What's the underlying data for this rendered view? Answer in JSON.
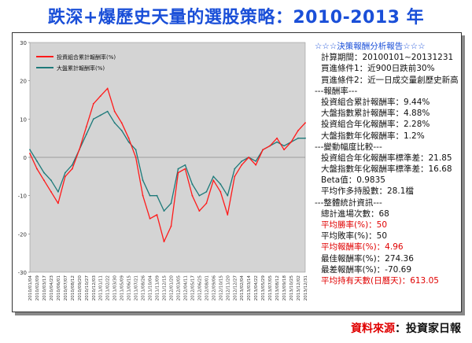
{
  "title": "跌深+爆歷史天量的選股策略：2010-2013 年",
  "source": {
    "label": "資料來源",
    "value": "：投資家日報"
  },
  "report": [
    {
      "text": "☆☆☆決策報酬分析報告☆☆☆",
      "style": "head",
      "indent": 1
    },
    {
      "text": "計算期間：20100101~20131231",
      "style": "",
      "indent": 2
    },
    {
      "text": "買進條件1：近900日跌前30%",
      "style": "",
      "indent": 2
    },
    {
      "text": "買進條件2：近一日成交量創歷史新高",
      "style": "",
      "indent": 2
    },
    {
      "text": "---報酬率---",
      "style": "",
      "indent": 1
    },
    {
      "text": "投資組合累計報酬率：9.44%",
      "style": "",
      "indent": 2
    },
    {
      "text": "大盤指數累計報酬率：4.88%",
      "style": "",
      "indent": 2
    },
    {
      "text": "投資組合年化報酬率：2.28%",
      "style": "",
      "indent": 2
    },
    {
      "text": "大盤指數年化報酬率：1.2%",
      "style": "",
      "indent": 2
    },
    {
      "text": "---變動幅度比較---",
      "style": "",
      "indent": 1
    },
    {
      "text": "投資組合年化報酬率標準差：21.85",
      "style": "",
      "indent": 2
    },
    {
      "text": "大盤指數年化報酬率標準差：16.68",
      "style": "",
      "indent": 2
    },
    {
      "text": "Beta值：0.9835",
      "style": "",
      "indent": 2
    },
    {
      "text": "平均作多持股數：28.1檔",
      "style": "",
      "indent": 2
    },
    {
      "text": "---整體統計資訊---",
      "style": "",
      "indent": 1
    },
    {
      "text": "總計進場次數：68",
      "style": "",
      "indent": 2
    },
    {
      "text": "平均勝率(%)：50",
      "style": "red",
      "indent": 2
    },
    {
      "text": "平均敗率(%)：50",
      "style": "",
      "indent": 2
    },
    {
      "text": "平均報酬率(%)：4.96",
      "style": "red",
      "indent": 2
    },
    {
      "text": "最佳報酬率(%)：274.36",
      "style": "",
      "indent": 2
    },
    {
      "text": "最差報酬率(%)：-70.69",
      "style": "",
      "indent": 2
    },
    {
      "text": "平均持有天數(日曆天)：613.05",
      "style": "red",
      "indent": 2
    }
  ],
  "chart_data": {
    "type": "line",
    "ylim": [
      -30,
      30
    ],
    "yticks": [
      -30,
      -20,
      -10,
      0,
      10,
      20,
      30
    ],
    "grid": false,
    "legend_position": "top-left",
    "background": "#d4d4d4",
    "x": [
      "2010/01/04",
      "2010/02/09",
      "2010/03/17",
      "2010/04/23",
      "2010/06/01",
      "2010/07/07",
      "2010/08/12",
      "2010/09/20",
      "2010/10/27",
      "2010/12/03",
      "2011/01/11",
      "2011/02/22",
      "2011/03/30",
      "2011/05/09",
      "2011/06/15",
      "2011/07/21",
      "2011/08/26",
      "2011/10/04",
      "2011/11/09",
      "2011/12/15",
      "2012/01/20",
      "2012/03/05",
      "2012/04/11",
      "2012/05/17",
      "2012/06/25",
      "2012/08/01",
      "2012/09/06",
      "2012/10/15",
      "2012/11/20",
      "2012/12/27",
      "2013/02/04",
      "2013/03/14",
      "2013/04/22",
      "2013/05/29",
      "2013/07/05",
      "2013/08/12",
      "2013/09/18",
      "2013/10/25",
      "2013/12/02",
      "2013/12/31"
    ],
    "series": [
      {
        "name": "投資組合累計報酬率(%)",
        "color": "#ff1a1a",
        "values": [
          1,
          -3,
          -6,
          -9,
          -12,
          -5,
          -3,
          2,
          8,
          14,
          16,
          18,
          12,
          9,
          5,
          0,
          -10,
          -16,
          -15,
          -22,
          -18,
          -4,
          -3,
          -10,
          -14,
          -12,
          -6,
          -9,
          -15,
          -5,
          -2,
          0,
          -2,
          2,
          3,
          5,
          2,
          4,
          7,
          9
        ]
      },
      {
        "name": "大盤累計報酬率(%)",
        "color": "#1e7a7a",
        "values": [
          2,
          -1,
          -4,
          -6,
          -9,
          -4,
          -2,
          2,
          6,
          10,
          11,
          12,
          9,
          7,
          4,
          2,
          -6,
          -10,
          -10,
          -14,
          -12,
          -3,
          -2,
          -7,
          -10,
          -9,
          -5,
          -7,
          -10,
          -3,
          -1,
          0,
          -1,
          2,
          3,
          4,
          3,
          4,
          5,
          5
        ]
      }
    ]
  }
}
